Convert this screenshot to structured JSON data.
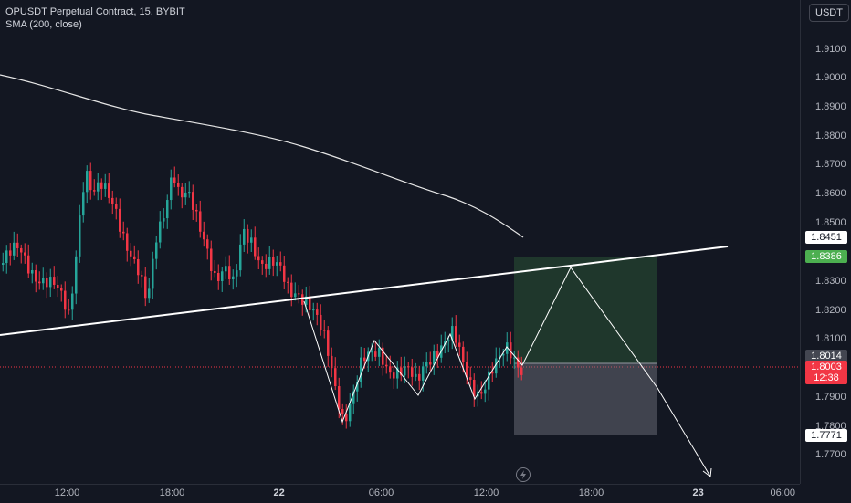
{
  "legend": {
    "title": "OPUSDT Perpetual Contract, 15, BYBIT",
    "indicator": "SMA (200, close)"
  },
  "currency_button": "USDT",
  "price_axis": {
    "ticks": [
      "1.9100",
      "1.9000",
      "1.8900",
      "1.8800",
      "1.8700",
      "1.8600",
      "1.8500",
      "1.8300",
      "1.8200",
      "1.8100",
      "1.7900",
      "1.7800",
      "1.7700"
    ],
    "tags": {
      "target": {
        "value": "1.8451",
        "bg": "#ffffff",
        "fg": "#131722"
      },
      "take_profit": {
        "value": "1.8386",
        "bg": "#4caf50",
        "fg": "#ffffff"
      },
      "entry": {
        "value": "1.8014",
        "bg": "#434651",
        "fg": "#ffffff"
      },
      "last_price": {
        "value": "1.8003",
        "bg": "#f23645",
        "fg": "#ffffff"
      },
      "countdown": {
        "value": "12:38",
        "bg": "#f23645",
        "fg": "#ffffff"
      },
      "stop_loss": {
        "value": "1.7771",
        "bg": "#ffffff",
        "fg": "#131722"
      }
    }
  },
  "time_axis": {
    "ticks": [
      {
        "label": "12:00",
        "bold": false
      },
      {
        "label": "18:00",
        "bold": false
      },
      {
        "label": "22",
        "bold": true
      },
      {
        "label": "06:00",
        "bold": false
      },
      {
        "label": "12:00",
        "bold": false
      },
      {
        "label": "18:00",
        "bold": false
      },
      {
        "label": "23",
        "bold": true
      },
      {
        "label": "06:00",
        "bold": false
      }
    ]
  },
  "colors": {
    "up": "#26a69a",
    "down": "#f23645",
    "background": "#131722",
    "sma": "#e6e6e6",
    "profit_zone": "rgba(76,175,80,0.22)",
    "loss_zone": "rgba(120,123,134,0.45)"
  },
  "icons": {
    "replay": "bolt-icon"
  }
}
